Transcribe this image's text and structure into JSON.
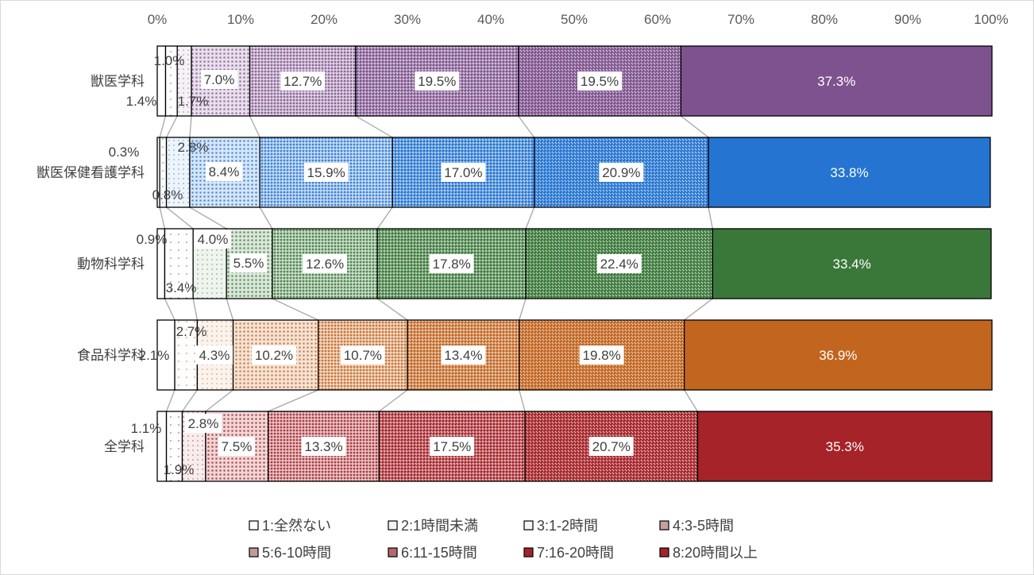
{
  "chart_data": {
    "type": "bar",
    "orientation": "horizontal",
    "stacked": "percent",
    "xlim": [
      0,
      100
    ],
    "xticks": [
      "0%",
      "10%",
      "20%",
      "30%",
      "40%",
      "50%",
      "60%",
      "70%",
      "80%",
      "90%",
      "100%"
    ],
    "grid": false,
    "legend_position": "bottom",
    "categories": [
      "獣医学科",
      "獣医保健看護学科",
      "動物科学科",
      "食品科学科",
      "全学科"
    ],
    "category_colors": [
      "#7e528e",
      "#2574d1",
      "#3a783a",
      "#c2651f",
      "#a52329"
    ],
    "series": [
      {
        "name": "1:全然ない",
        "values": [
          1.0,
          0.3,
          0.9,
          2.1,
          1.1
        ],
        "labels": [
          "1.0%",
          "0.3%",
          "0.9%",
          "2.1%",
          "1.1%"
        ]
      },
      {
        "name": "2:1時間未満",
        "values": [
          1.4,
          0.8,
          3.4,
          2.7,
          1.9
        ],
        "labels": [
          "1.4%",
          "0.8%",
          "3.4%",
          "2.7%",
          "1.9%"
        ]
      },
      {
        "name": "3:1-2時間",
        "values": [
          1.7,
          2.8,
          4.0,
          4.3,
          2.8
        ],
        "labels": [
          "1.7%",
          "2.8%",
          "4.0%",
          "4.3%",
          "2.8%"
        ]
      },
      {
        "name": "4:3-5時間",
        "values": [
          7.0,
          8.4,
          5.5,
          10.2,
          7.5
        ],
        "labels": [
          "7.0%",
          "8.4%",
          "5.5%",
          "10.2%",
          "7.5%"
        ]
      },
      {
        "name": "5:6-10時間",
        "values": [
          12.7,
          15.9,
          12.6,
          10.7,
          13.3
        ],
        "labels": [
          "12.7%",
          "15.9%",
          "12.6%",
          "10.7%",
          "13.3%"
        ]
      },
      {
        "name": "6:11-15時間",
        "values": [
          19.5,
          17.0,
          17.8,
          13.4,
          17.5
        ],
        "labels": [
          "19.5%",
          "17.0%",
          "17.8%",
          "13.4%",
          "17.5%"
        ]
      },
      {
        "name": "7:16-20時間",
        "values": [
          19.5,
          20.9,
          22.4,
          19.8,
          20.7
        ],
        "labels": [
          "19.5%",
          "20.9%",
          "22.4%",
          "19.8%",
          "20.7%"
        ]
      },
      {
        "name": "8:20時間以上",
        "values": [
          37.3,
          33.8,
          33.4,
          36.9,
          35.3
        ],
        "labels": [
          "37.3%",
          "33.8%",
          "33.4%",
          "36.9%",
          "35.3%"
        ]
      }
    ],
    "legend_colors": [
      "#ffffff",
      "#f2f2f2",
      "#e9e9e9",
      "#c4a0a0",
      "#c29a9a",
      "#b46a6a",
      "#a52329",
      "#a52329"
    ]
  }
}
